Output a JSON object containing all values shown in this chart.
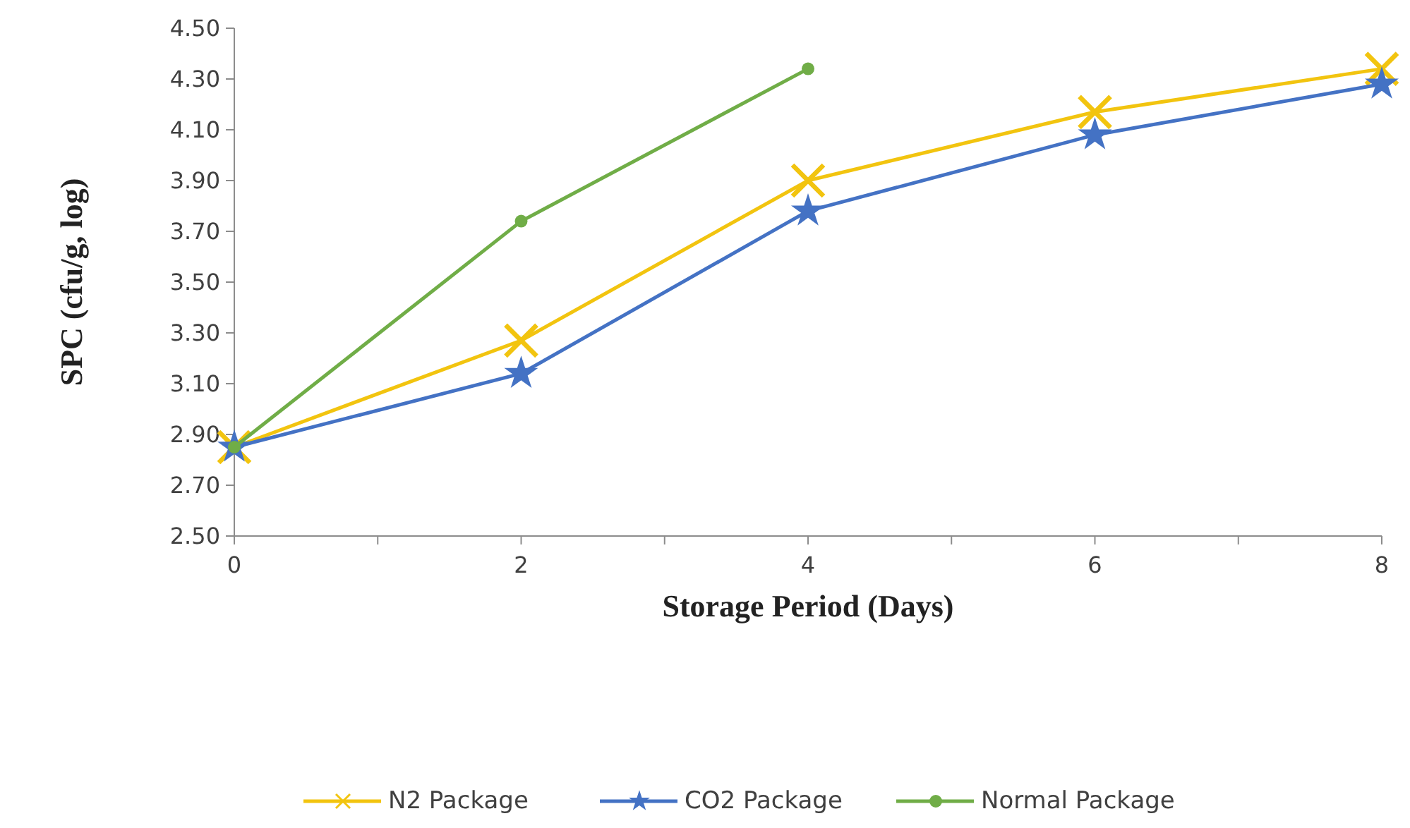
{
  "chart_data": {
    "type": "line",
    "xlabel": "Storage Period (Days)",
    "ylabel": "SPC (cfu/g, log)",
    "x": [
      0,
      2,
      4,
      6,
      8
    ],
    "xlim": [
      0,
      8
    ],
    "xticks": [
      0,
      {
        "value": 1,
        "label": null
      },
      2,
      {
        "value": 3,
        "label": null
      },
      4,
      {
        "value": 5,
        "label": null
      },
      6,
      {
        "value": 7,
        "label": null
      },
      8
    ],
    "ylim": [
      2.5,
      4.5
    ],
    "yticks": [
      {
        "value": 2.5,
        "label": "2.50"
      },
      {
        "value": 2.7,
        "label": "2.70"
      },
      {
        "value": 2.9,
        "label": "2.90"
      },
      {
        "value": 3.1,
        "label": "3.10"
      },
      {
        "value": 3.3,
        "label": "3.30"
      },
      {
        "value": 3.5,
        "label": "3.50"
      },
      {
        "value": 3.7,
        "label": "3.70"
      },
      {
        "value": 3.9,
        "label": "3.90"
      },
      {
        "value": 4.1,
        "label": "4.10"
      },
      {
        "value": 4.3,
        "label": "4.30"
      },
      {
        "value": 4.5,
        "label": "4.50"
      }
    ],
    "grid": false,
    "legend": "bottom",
    "series": [
      {
        "name": "N2 Package",
        "color": "#f2c40f",
        "marker": "cross",
        "values": [
          2.85,
          3.27,
          3.9,
          4.17,
          4.34
        ]
      },
      {
        "name": "CO2 Package",
        "color": "#4472c4",
        "marker": "star",
        "values": [
          2.85,
          3.14,
          3.78,
          4.08,
          4.28
        ]
      },
      {
        "name": "Normal Package",
        "color": "#70ad47",
        "marker": "circle",
        "values": [
          2.85,
          3.74,
          4.34,
          null,
          null
        ]
      }
    ]
  }
}
